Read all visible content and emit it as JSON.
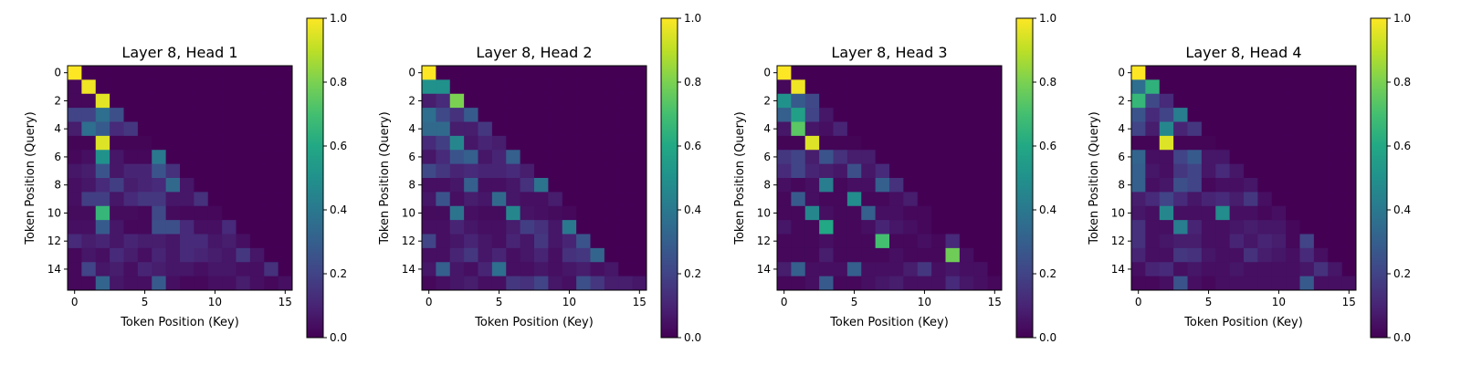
{
  "chart_data": [
    {
      "type": "heatmap",
      "title": "Layer 8, Head 1",
      "xlabel": "Token Position (Key)",
      "ylabel": "Token Position (Query)",
      "x_ticks": [
        0,
        5,
        10,
        15
      ],
      "y_ticks": [
        0,
        2,
        4,
        6,
        8,
        10,
        12,
        14
      ],
      "colorbar_ticks": [
        "0.0",
        "0.2",
        "0.4",
        "0.6",
        "0.8",
        "1.0"
      ],
      "vmin": 0,
      "vmax": 1,
      "colormap": "viridis",
      "values": [
        [
          1.0,
          0,
          0,
          0,
          0,
          0,
          0,
          0,
          0,
          0,
          0,
          0,
          0,
          0,
          0,
          0
        ],
        [
          0.02,
          0.98,
          0,
          0,
          0,
          0,
          0,
          0,
          0,
          0,
          0,
          0,
          0,
          0,
          0,
          0
        ],
        [
          0.02,
          0.02,
          0.96,
          0,
          0,
          0,
          0,
          0,
          0,
          0,
          0,
          0,
          0,
          0,
          0,
          0
        ],
        [
          0.2,
          0.2,
          0.36,
          0.24,
          0,
          0,
          0,
          0,
          0,
          0,
          0,
          0,
          0,
          0,
          0,
          0
        ],
        [
          0.08,
          0.36,
          0.28,
          0.12,
          0.16,
          0,
          0,
          0,
          0,
          0,
          0,
          0,
          0,
          0,
          0,
          0
        ],
        [
          0.01,
          0.01,
          0.95,
          0.01,
          0.01,
          0.01,
          0,
          0,
          0,
          0,
          0,
          0,
          0,
          0,
          0,
          0
        ],
        [
          0.02,
          0.04,
          0.5,
          0.06,
          0.02,
          0.02,
          0.4,
          0,
          0,
          0,
          0,
          0,
          0,
          0,
          0,
          0
        ],
        [
          0.06,
          0.08,
          0.26,
          0.06,
          0.1,
          0.1,
          0.26,
          0.14,
          0,
          0,
          0,
          0,
          0,
          0,
          0,
          0
        ],
        [
          0.04,
          0.06,
          0.12,
          0.18,
          0.08,
          0.1,
          0.12,
          0.34,
          0.06,
          0,
          0,
          0,
          0,
          0,
          0,
          0
        ],
        [
          0.04,
          0.18,
          0.18,
          0.06,
          0.12,
          0.16,
          0.16,
          0.06,
          0.06,
          0.14,
          0,
          0,
          0,
          0,
          0,
          0
        ],
        [
          0.03,
          0.03,
          0.66,
          0.03,
          0.03,
          0.02,
          0.22,
          0.03,
          0.02,
          0.02,
          0.02,
          0,
          0,
          0,
          0,
          0
        ],
        [
          0.04,
          0.04,
          0.28,
          0.06,
          0.02,
          0.02,
          0.24,
          0.24,
          0.12,
          0.04,
          0.04,
          0.12,
          0,
          0,
          0,
          0
        ],
        [
          0.12,
          0.08,
          0.1,
          0.06,
          0.1,
          0.08,
          0.08,
          0.06,
          0.12,
          0.12,
          0.06,
          0.08,
          0.04,
          0,
          0,
          0
        ],
        [
          0.02,
          0.06,
          0.04,
          0.12,
          0.08,
          0.04,
          0.1,
          0.06,
          0.12,
          0.1,
          0.08,
          0.06,
          0.16,
          0.06,
          0,
          0
        ],
        [
          0.02,
          0.2,
          0.06,
          0.08,
          0.04,
          0.1,
          0.08,
          0.06,
          0.06,
          0.04,
          0.06,
          0.06,
          0.04,
          0.04,
          0.14,
          0
        ],
        [
          0.02,
          0.02,
          0.32,
          0.06,
          0.04,
          0.04,
          0.28,
          0.04,
          0.02,
          0.02,
          0.04,
          0.04,
          0.08,
          0.04,
          0.02,
          0.04
        ]
      ]
    },
    {
      "type": "heatmap",
      "title": "Layer 8, Head 2",
      "xlabel": "Token Position (Key)",
      "ylabel": "Token Position (Query)",
      "x_ticks": [
        0,
        5,
        10,
        15
      ],
      "y_ticks": [
        0,
        2,
        4,
        6,
        8,
        10,
        12,
        14
      ],
      "colorbar_ticks": [
        "0.0",
        "0.2",
        "0.4",
        "0.6",
        "0.8",
        "1.0"
      ],
      "vmin": 0,
      "vmax": 1,
      "colormap": "viridis",
      "values": [
        [
          1.0,
          0,
          0,
          0,
          0,
          0,
          0,
          0,
          0,
          0,
          0,
          0,
          0,
          0,
          0,
          0
        ],
        [
          0.5,
          0.5,
          0,
          0,
          0,
          0,
          0,
          0,
          0,
          0,
          0,
          0,
          0,
          0,
          0,
          0
        ],
        [
          0.08,
          0.12,
          0.8,
          0,
          0,
          0,
          0,
          0,
          0,
          0,
          0,
          0,
          0,
          0,
          0,
          0
        ],
        [
          0.36,
          0.22,
          0.14,
          0.28,
          0,
          0,
          0,
          0,
          0,
          0,
          0,
          0,
          0,
          0,
          0,
          0
        ],
        [
          0.34,
          0.34,
          0.08,
          0.08,
          0.16,
          0,
          0,
          0,
          0,
          0,
          0,
          0,
          0,
          0,
          0,
          0
        ],
        [
          0.12,
          0.18,
          0.46,
          0.06,
          0.1,
          0.08,
          0,
          0,
          0,
          0,
          0,
          0,
          0,
          0,
          0,
          0
        ],
        [
          0.06,
          0.12,
          0.26,
          0.3,
          0.06,
          0.1,
          0.3,
          0,
          0,
          0,
          0,
          0,
          0,
          0,
          0,
          0
        ],
        [
          0.22,
          0.16,
          0.1,
          0.12,
          0.1,
          0.1,
          0.12,
          0.08,
          0,
          0,
          0,
          0,
          0,
          0,
          0,
          0
        ],
        [
          0.04,
          0.04,
          0.06,
          0.3,
          0.04,
          0.04,
          0.06,
          0.14,
          0.38,
          0,
          0,
          0,
          0,
          0,
          0,
          0
        ],
        [
          0.06,
          0.26,
          0.04,
          0.08,
          0.06,
          0.34,
          0.06,
          0.04,
          0.04,
          0.08,
          0,
          0,
          0,
          0,
          0,
          0
        ],
        [
          0.03,
          0.03,
          0.38,
          0.04,
          0.03,
          0.03,
          0.46,
          0.05,
          0.04,
          0.03,
          0.02,
          0,
          0,
          0,
          0,
          0
        ],
        [
          0.04,
          0.04,
          0.1,
          0.06,
          0.04,
          0.04,
          0.08,
          0.18,
          0.14,
          0.06,
          0.4,
          0,
          0,
          0,
          0,
          0
        ],
        [
          0.2,
          0.04,
          0.06,
          0.1,
          0.06,
          0.04,
          0.1,
          0.06,
          0.16,
          0.06,
          0.1,
          0.26,
          0,
          0,
          0,
          0
        ],
        [
          0.04,
          0.04,
          0.1,
          0.16,
          0.06,
          0.1,
          0.04,
          0.06,
          0.1,
          0.04,
          0.14,
          0.16,
          0.32,
          0,
          0,
          0
        ],
        [
          0.06,
          0.3,
          0.06,
          0.04,
          0.1,
          0.36,
          0.04,
          0.04,
          0.06,
          0.04,
          0.06,
          0.08,
          0.04,
          0.06,
          0,
          0
        ],
        [
          0.02,
          0.04,
          0.06,
          0.08,
          0.04,
          0.04,
          0.16,
          0.14,
          0.2,
          0.06,
          0.04,
          0.24,
          0.16,
          0.08,
          0.08,
          0.06
        ]
      ]
    },
    {
      "type": "heatmap",
      "title": "Layer 8, Head 3",
      "xlabel": "Token Position (Key)",
      "ylabel": "Token Position (Query)",
      "x_ticks": [
        0,
        5,
        10,
        15
      ],
      "y_ticks": [
        0,
        2,
        4,
        6,
        8,
        10,
        12,
        14
      ],
      "colorbar_ticks": [
        "0.0",
        "0.2",
        "0.4",
        "0.6",
        "0.8",
        "1.0"
      ],
      "vmin": 0,
      "vmax": 1,
      "colormap": "viridis",
      "values": [
        [
          1.0,
          0,
          0,
          0,
          0,
          0,
          0,
          0,
          0,
          0,
          0,
          0,
          0,
          0,
          0,
          0
        ],
        [
          0.02,
          0.98,
          0,
          0,
          0,
          0,
          0,
          0,
          0,
          0,
          0,
          0,
          0,
          0,
          0,
          0
        ],
        [
          0.5,
          0.28,
          0.22,
          0,
          0,
          0,
          0,
          0,
          0,
          0,
          0,
          0,
          0,
          0,
          0,
          0
        ],
        [
          0.3,
          0.56,
          0.2,
          0.06,
          0,
          0,
          0,
          0,
          0,
          0,
          0,
          0,
          0,
          0,
          0,
          0
        ],
        [
          0.06,
          0.74,
          0.06,
          0.04,
          0.1,
          0,
          0,
          0,
          0,
          0,
          0,
          0,
          0,
          0,
          0,
          0
        ],
        [
          0.01,
          0.01,
          0.95,
          0.01,
          0.01,
          0.01,
          0,
          0,
          0,
          0,
          0,
          0,
          0,
          0,
          0,
          0
        ],
        [
          0.16,
          0.2,
          0.08,
          0.26,
          0.14,
          0.08,
          0.08,
          0,
          0,
          0,
          0,
          0,
          0,
          0,
          0,
          0
        ],
        [
          0.12,
          0.2,
          0.1,
          0.08,
          0.06,
          0.24,
          0.06,
          0.12,
          0,
          0,
          0,
          0,
          0,
          0,
          0,
          0
        ],
        [
          0.04,
          0.02,
          0.04,
          0.42,
          0.02,
          0.04,
          0.04,
          0.3,
          0.14,
          0,
          0,
          0,
          0,
          0,
          0,
          0
        ],
        [
          0.02,
          0.28,
          0.04,
          0.02,
          0.02,
          0.48,
          0.02,
          0.02,
          0.04,
          0.08,
          0,
          0,
          0,
          0,
          0,
          0
        ],
        [
          0.02,
          0.02,
          0.46,
          0.04,
          0.02,
          0.02,
          0.3,
          0.04,
          0.04,
          0.02,
          0.02,
          0,
          0,
          0,
          0,
          0
        ],
        [
          0.06,
          0.02,
          0.02,
          0.6,
          0.02,
          0.02,
          0.04,
          0.1,
          0.06,
          0.04,
          0.02,
          0,
          0,
          0,
          0,
          0
        ],
        [
          0.02,
          0.02,
          0.02,
          0.04,
          0.02,
          0.02,
          0.02,
          0.7,
          0.02,
          0.02,
          0.04,
          0.02,
          0.12,
          0,
          0,
          0
        ],
        [
          0.02,
          0.02,
          0.02,
          0.08,
          0.02,
          0.02,
          0.02,
          0.02,
          0.04,
          0.02,
          0.02,
          0.02,
          0.78,
          0.04,
          0,
          0
        ],
        [
          0.08,
          0.3,
          0.04,
          0.04,
          0.04,
          0.3,
          0.04,
          0.04,
          0.04,
          0.08,
          0.16,
          0.04,
          0.06,
          0.04,
          0.04,
          0
        ],
        [
          0.02,
          0.02,
          0.04,
          0.28,
          0.02,
          0.02,
          0.04,
          0.06,
          0.08,
          0.04,
          0.04,
          0.04,
          0.12,
          0.06,
          0.04,
          0.02
        ]
      ]
    },
    {
      "type": "heatmap",
      "title": "Layer 8, Head 4",
      "xlabel": "Token Position (Key)",
      "ylabel": "Token Position (Query)",
      "x_ticks": [
        0,
        5,
        10,
        15
      ],
      "y_ticks": [
        0,
        2,
        4,
        6,
        8,
        10,
        12,
        14
      ],
      "colorbar_ticks": [
        "0.0",
        "0.2",
        "0.4",
        "0.6",
        "0.8",
        "1.0"
      ],
      "vmin": 0,
      "vmax": 1,
      "colormap": "viridis",
      "values": [
        [
          1.0,
          0,
          0,
          0,
          0,
          0,
          0,
          0,
          0,
          0,
          0,
          0,
          0,
          0,
          0,
          0
        ],
        [
          0.36,
          0.64,
          0,
          0,
          0,
          0,
          0,
          0,
          0,
          0,
          0,
          0,
          0,
          0,
          0,
          0
        ],
        [
          0.66,
          0.22,
          0.12,
          0,
          0,
          0,
          0,
          0,
          0,
          0,
          0,
          0,
          0,
          0,
          0,
          0
        ],
        [
          0.26,
          0.12,
          0.2,
          0.42,
          0,
          0,
          0,
          0,
          0,
          0,
          0,
          0,
          0,
          0,
          0,
          0
        ],
        [
          0.2,
          0.08,
          0.46,
          0.1,
          0.16,
          0,
          0,
          0,
          0,
          0,
          0,
          0,
          0,
          0,
          0,
          0
        ],
        [
          0.01,
          0.01,
          0.95,
          0.01,
          0.01,
          0.01,
          0,
          0,
          0,
          0,
          0,
          0,
          0,
          0,
          0,
          0
        ],
        [
          0.32,
          0.04,
          0.04,
          0.2,
          0.28,
          0.06,
          0.06,
          0,
          0,
          0,
          0,
          0,
          0,
          0,
          0,
          0
        ],
        [
          0.3,
          0.06,
          0.04,
          0.16,
          0.2,
          0.06,
          0.12,
          0.06,
          0,
          0,
          0,
          0,
          0,
          0,
          0,
          0
        ],
        [
          0.3,
          0.04,
          0.06,
          0.24,
          0.2,
          0.02,
          0.04,
          0.04,
          0.06,
          0,
          0,
          0,
          0,
          0,
          0,
          0
        ],
        [
          0.08,
          0.12,
          0.2,
          0.12,
          0.06,
          0.1,
          0.12,
          0.08,
          0.16,
          0.04,
          0,
          0,
          0,
          0,
          0,
          0
        ],
        [
          0.06,
          0.04,
          0.46,
          0.04,
          0.04,
          0.04,
          0.48,
          0.04,
          0.04,
          0.02,
          0.04,
          0,
          0,
          0,
          0,
          0
        ],
        [
          0.14,
          0.04,
          0.04,
          0.42,
          0.1,
          0.04,
          0.04,
          0.06,
          0.08,
          0.06,
          0.06,
          0.02,
          0,
          0,
          0,
          0
        ],
        [
          0.14,
          0.04,
          0.06,
          0.08,
          0.08,
          0.04,
          0.04,
          0.1,
          0.06,
          0.1,
          0.08,
          0.02,
          0.2,
          0,
          0,
          0
        ],
        [
          0.1,
          0.04,
          0.04,
          0.16,
          0.14,
          0.06,
          0.04,
          0.04,
          0.14,
          0.08,
          0.06,
          0.04,
          0.12,
          0.04,
          0,
          0
        ],
        [
          0.04,
          0.1,
          0.12,
          0.04,
          0.06,
          0.04,
          0.04,
          0.06,
          0.04,
          0.04,
          0.04,
          0.04,
          0.06,
          0.14,
          0.06,
          0
        ],
        [
          0.02,
          0.02,
          0.04,
          0.26,
          0.04,
          0.02,
          0.04,
          0.04,
          0.04,
          0.04,
          0.04,
          0.04,
          0.28,
          0.04,
          0.04,
          0.04
        ]
      ]
    }
  ]
}
